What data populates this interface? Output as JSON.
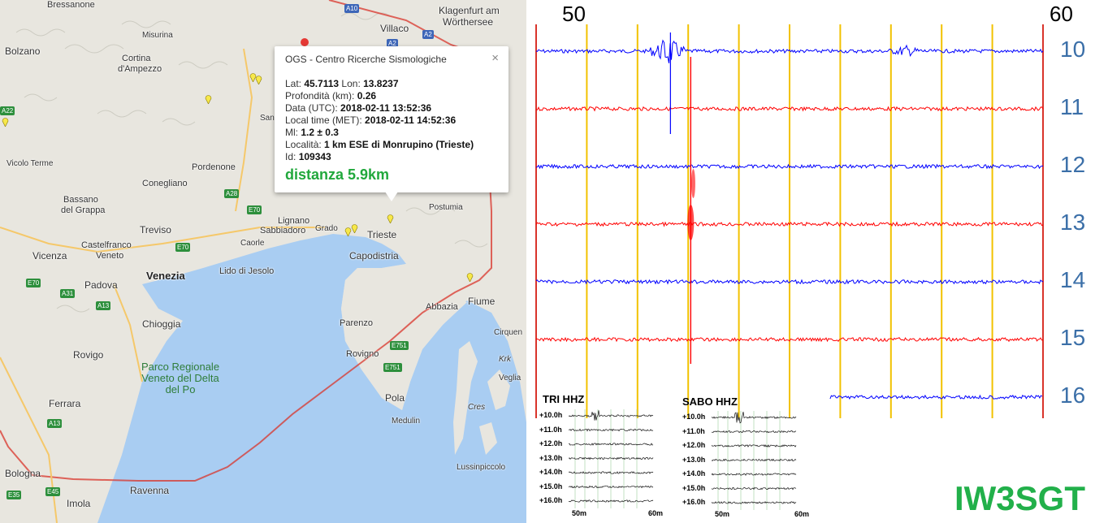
{
  "colors": {
    "water": "#a9cdf2",
    "land": "#e8e6df",
    "trace_blue": "#0000ff",
    "trace_red": "#ff0000",
    "minute_line": "#f2c200",
    "boundary_line": "#d9342b",
    "callsign": "#22b04a",
    "hour_label": "#3b6fa8",
    "distance": "#21a83c"
  },
  "map": {
    "places": {
      "bressanone": "Bressanone",
      "misurina": "Misurina",
      "villaco": "Villaco",
      "klagenfurt": "Klagenfurt am",
      "worthersee": "Wörthersee",
      "bolzano": "Bolzano",
      "cortina": "Cortina",
      "ampezzo": "d'Ampezzo",
      "san_daniele": "San D",
      "vicolo_terme": "Vicolo Terme",
      "pordenone": "Pordenone",
      "conegliano": "Conegliano",
      "bassano": "Bassano",
      "del_grappa": "del Grappa",
      "lignano": "Lignano",
      "sabbiadoro": "Sabbiadoro",
      "grado": "Grado",
      "trieste": "Trieste",
      "postumia": "Postumia",
      "treviso": "Treviso",
      "castelfranco": "Castelfranco",
      "veneto": "Veneto",
      "caorle": "Caorle",
      "capodistria": "Capodistria",
      "vicenza": "Vicenza",
      "lido_jesolo": "Lido di Jesolo",
      "padova": "Padova",
      "venezia": "Venezia",
      "abbazia": "Abbazia",
      "fiume": "Fiume",
      "chioggia": "Chioggia",
      "parenzo": "Parenzo",
      "cirquen": "Cirquen",
      "rovigo": "Rovigo",
      "rovigno": "Rovigno",
      "krk": "Krk",
      "veglia": "Veglia",
      "parco": "Parco Regionale Veneto del Delta del Po",
      "ferrara": "Ferrara",
      "pola": "Pola",
      "cres": "Cres",
      "medulin": "Medulin",
      "lussinpiccolo": "Lussinpiccolo",
      "bologna": "Bologna",
      "ravenna": "Ravenna",
      "imola": "Imola"
    },
    "roads": {
      "a10": "A10",
      "a2_top": "A2",
      "a2_mid": "A2",
      "a22": "A22",
      "a28": "A28",
      "e70_a": "E70",
      "e70_b": "E70",
      "e70_c": "E70",
      "a31": "A31",
      "a13_a": "A13",
      "a13_b": "A13",
      "e751_a": "E751",
      "e751_b": "E751",
      "e35": "E35",
      "e45": "E45"
    }
  },
  "popup": {
    "title": "OGS - Centro Ricerche Sismologiche",
    "close": "×",
    "lat_label": "Lat:",
    "lat": "45.7113",
    "lon_label": "Lon:",
    "lon": "13.8237",
    "depth_label": "Profondità (km):",
    "depth": "0.26",
    "utc_label": "Data (UTC):",
    "utc": "2018-02-11 13:52:36",
    "met_label": "Local time (MET):",
    "met": "2018-02-11 14:52:36",
    "ml_label": "Ml:",
    "ml": "1.2 ± 0.3",
    "loc_label": "Località:",
    "loc": "1 km ESE di Monrupino (Trieste)",
    "id_label": "Id:",
    "id": "109343",
    "distance": "distanza 5.9km"
  },
  "seismogram": {
    "minute_start": "50",
    "minute_end": "60",
    "hours": [
      "10",
      "11",
      "12",
      "13",
      "14",
      "15",
      "16"
    ],
    "traces": [
      {
        "hour": "10",
        "color": "blue"
      },
      {
        "hour": "11",
        "color": "red"
      },
      {
        "hour": "12",
        "color": "blue"
      },
      {
        "hour": "13",
        "color": "red"
      },
      {
        "hour": "14",
        "color": "blue"
      },
      {
        "hour": "15",
        "color": "red"
      },
      {
        "hour": "16",
        "color": "blue"
      }
    ],
    "event_minute": 52.6
  },
  "mini": {
    "tri": {
      "title": "TRI HHZ",
      "rows": [
        "+10.0h",
        "+11.0h",
        "+12.0h",
        "+13.0h",
        "+14.0h",
        "+15.0h",
        "+16.0h"
      ],
      "x_start": "50m",
      "x_end": "60m"
    },
    "sabo": {
      "title": "SABO HHZ",
      "rows": [
        "+10.0h",
        "+11.0h",
        "+12.0h",
        "+13.0h",
        "+14.0h",
        "+15.0h",
        "+16.0h"
      ],
      "x_start": "50m",
      "x_end": "60m"
    }
  },
  "callsign": "IW3SGT"
}
